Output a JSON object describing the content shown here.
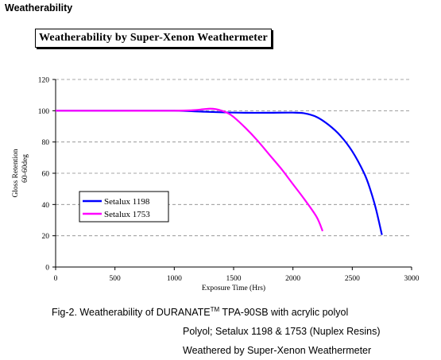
{
  "page": {
    "heading": "Weatherability",
    "caption": {
      "line1_pre": "Fig-2. Weatherability of DURANATE",
      "line1_sup": "TM",
      "line1_post": " TPA-90SB with acrylic polyol",
      "line2": "Polyol; Setalux 1198 & 1753 (Nuplex Resins)",
      "line3": "Weathered by Super-Xenon Weathermeter"
    }
  },
  "chart_data": {
    "type": "line",
    "title": "Weatherability by Super-Xenon Weathermeter",
    "xlabel": "Exposure Time (Hrs)",
    "ylabel_line1": "Gloss Retention",
    "ylabel_line2": "60-60deg",
    "xlim": [
      0,
      3000
    ],
    "ylim": [
      0,
      120
    ],
    "x_ticks": [
      0,
      500,
      1000,
      1500,
      2000,
      2500,
      3000
    ],
    "y_ticks": [
      0,
      20,
      40,
      60,
      80,
      100,
      120
    ],
    "grid": "horizontal dashed",
    "legend_position": "center-left",
    "series": [
      {
        "name": "Setalux 1198",
        "color": "#0000ff",
        "points": [
          [
            0,
            100
          ],
          [
            500,
            100
          ],
          [
            1000,
            100
          ],
          [
            1200,
            99.5
          ],
          [
            1400,
            99
          ],
          [
            1600,
            98.7
          ],
          [
            1800,
            98.7
          ],
          [
            2000,
            98.8
          ],
          [
            2100,
            98.3
          ],
          [
            2200,
            96
          ],
          [
            2300,
            91
          ],
          [
            2400,
            84
          ],
          [
            2500,
            74
          ],
          [
            2600,
            60
          ],
          [
            2650,
            50
          ],
          [
            2700,
            37
          ],
          [
            2750,
            20.5
          ]
        ]
      },
      {
        "name": "Setalux 1753",
        "color": "#ff00ff",
        "points": [
          [
            0,
            100
          ],
          [
            500,
            100
          ],
          [
            1000,
            100
          ],
          [
            1150,
            100.3
          ],
          [
            1250,
            101
          ],
          [
            1300,
            101.3
          ],
          [
            1350,
            101
          ],
          [
            1400,
            100
          ],
          [
            1450,
            98.5
          ],
          [
            1500,
            96
          ],
          [
            1600,
            89
          ],
          [
            1700,
            81
          ],
          [
            1800,
            72
          ],
          [
            1900,
            63
          ],
          [
            2000,
            53
          ],
          [
            2100,
            43
          ],
          [
            2200,
            32
          ],
          [
            2250,
            23
          ]
        ]
      }
    ]
  }
}
